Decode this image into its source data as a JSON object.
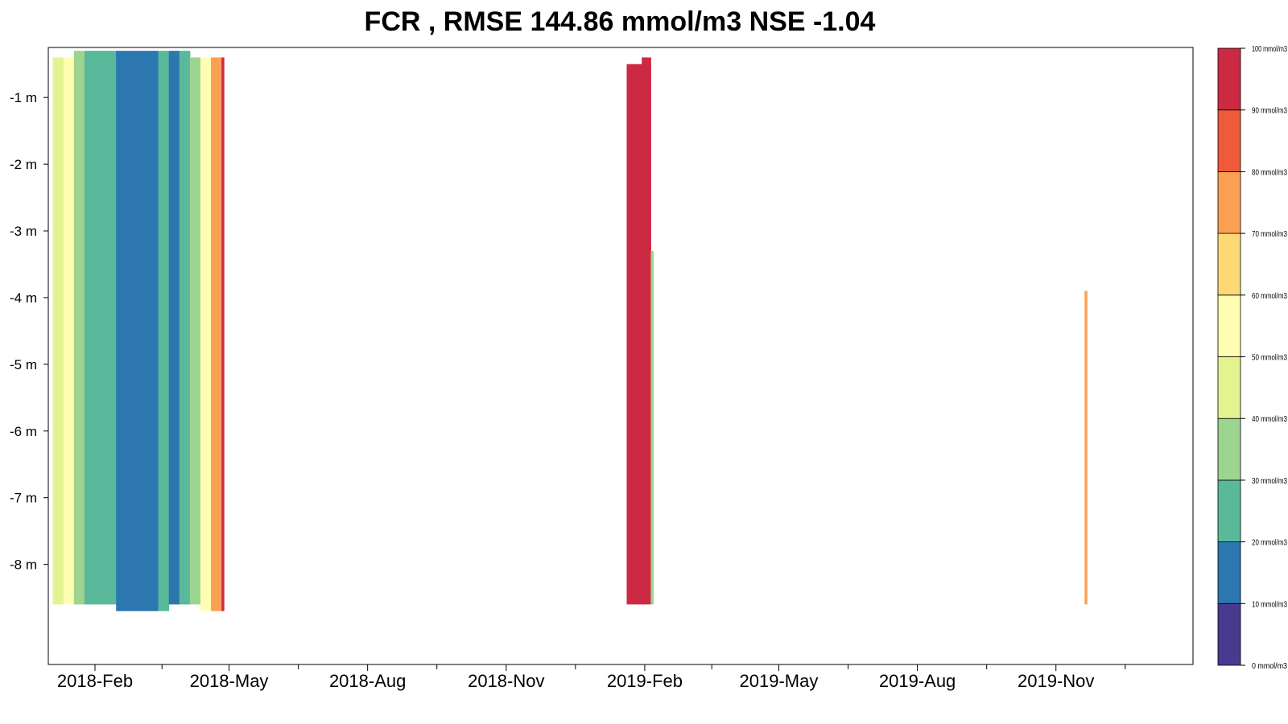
{
  "chart_data": {
    "type": "heatmap",
    "title": "FCR , RMSE 144.86 mmol/m3 NSE -1.04",
    "xlabel": "",
    "ylabel": "",
    "x_ticks": [
      "2018-Feb",
      "2018-May",
      "2018-Aug",
      "2018-Nov",
      "2019-Feb",
      "2019-May",
      "2019-Aug",
      "2019-Nov"
    ],
    "x_tick_dates": [
      "2018-02-01",
      "2018-05-01",
      "2018-08-01",
      "2018-11-01",
      "2019-02-01",
      "2019-05-01",
      "2019-08-01",
      "2019-11-01"
    ],
    "x_range": [
      "2018-01-01",
      "2020-01-31"
    ],
    "y_ticks": [
      "-1 m",
      "-2 m",
      "-3 m",
      "-4 m",
      "-5 m",
      "-6 m",
      "-7 m",
      "-8 m"
    ],
    "y_tick_values": [
      -1,
      -2,
      -3,
      -4,
      -5,
      -6,
      -7,
      -8
    ],
    "y_range": [
      -9.5,
      -0.25
    ],
    "colorbar": {
      "levels": [
        0,
        10,
        20,
        30,
        40,
        50,
        60,
        70,
        80,
        90,
        100
      ],
      "labels": [
        "0 mmol/m3",
        "10 mmol/m3",
        "20 mmol/m3",
        "30 mmol/m3",
        "40 mmol/m3",
        "50 mmol/m3",
        "60 mmol/m3",
        "70 mmol/m3",
        "80 mmol/m3",
        "90 mmol/m3",
        "100 mmol/m3"
      ],
      "colors": [
        "#4a3a8f",
        "#2c77b0",
        "#5ab99a",
        "#9dd48f",
        "#e2f38f",
        "#fffdb2",
        "#fdd976",
        "#fba052",
        "#ee5a3a",
        "#cc2a42"
      ]
    },
    "bands": [
      {
        "date": "2018-01-04",
        "top": -0.4,
        "bottom": -8.6,
        "value": 45
      },
      {
        "date": "2018-01-11",
        "top": -0.4,
        "bottom": -8.6,
        "value": 55
      },
      {
        "date": "2018-01-18",
        "top": -0.3,
        "bottom": -8.6,
        "value": 35
      },
      {
        "date": "2018-01-25",
        "top": -0.3,
        "bottom": -8.6,
        "value": 25
      },
      {
        "date": "2018-02-01",
        "top": -0.3,
        "bottom": -8.6,
        "value": 25
      },
      {
        "date": "2018-02-08",
        "top": -0.3,
        "bottom": -8.6,
        "value": 25
      },
      {
        "date": "2018-02-15",
        "top": -0.3,
        "bottom": -8.7,
        "value": 15
      },
      {
        "date": "2018-02-22",
        "top": -0.3,
        "bottom": -8.7,
        "value": 15
      },
      {
        "date": "2018-03-01",
        "top": -0.3,
        "bottom": -8.7,
        "value": 15
      },
      {
        "date": "2018-03-08",
        "top": -0.3,
        "bottom": -8.7,
        "value": 15
      },
      {
        "date": "2018-03-15",
        "top": -0.3,
        "bottom": -8.7,
        "value": 25
      },
      {
        "date": "2018-03-22",
        "top": -0.3,
        "bottom": -8.6,
        "value": 15
      },
      {
        "date": "2018-03-29",
        "top": -0.3,
        "bottom": -8.6,
        "value": 25
      },
      {
        "date": "2018-04-05",
        "top": -0.4,
        "bottom": -8.6,
        "value": 35
      },
      {
        "date": "2018-04-12",
        "top": -0.4,
        "bottom": -8.7,
        "value": 55
      },
      {
        "date": "2018-04-19",
        "top": -0.4,
        "bottom": -8.7,
        "value": 75
      },
      {
        "date": "2018-04-26",
        "top": -0.4,
        "bottom": -8.7,
        "value": 95
      },
      {
        "date": "2019-01-20",
        "top": -0.5,
        "bottom": -8.6,
        "value": 95
      },
      {
        "date": "2019-01-30",
        "top": -0.4,
        "bottom": -8.6,
        "value": 95
      },
      {
        "date": "2019-02-05",
        "top": -3.3,
        "bottom": -8.6,
        "value": 35
      },
      {
        "date": "2019-11-20",
        "top": -3.9,
        "bottom": -8.6,
        "value": 75
      }
    ]
  }
}
